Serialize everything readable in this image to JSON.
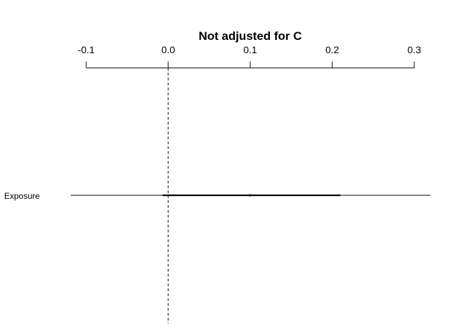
{
  "chart_data": {
    "type": "forest",
    "title": "Not adjusted for C",
    "xlim": [
      -0.1,
      0.3
    ],
    "ticks": [
      -0.1,
      0.0,
      0.1,
      0.2,
      0.3
    ],
    "tick_labels": [
      "-0.1",
      "0.0",
      "0.1",
      "0.2",
      "0.3"
    ],
    "reference_line": 0.0,
    "rows": [
      {
        "label": "Exposure",
        "estimate": 0.1,
        "lower": -0.007,
        "upper": 0.21
      }
    ]
  }
}
